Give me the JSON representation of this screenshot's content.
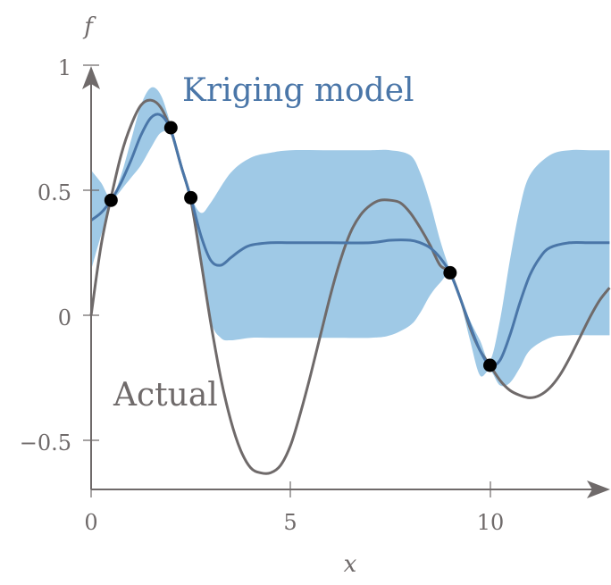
{
  "chart_data": {
    "type": "line",
    "title": "",
    "xlabel": "x",
    "ylabel": "f",
    "xlim": [
      0,
      13
    ],
    "ylim": [
      -0.7,
      1.0
    ],
    "grid": false,
    "legend": "inline annotations",
    "x_ticks": [
      "0",
      "5",
      "10"
    ],
    "y_ticks": [
      "−0.5",
      "0",
      "0.5",
      "1"
    ],
    "annotations": [
      {
        "text": "Kriging model",
        "color": "#4a76a8",
        "x": 4.6,
        "y": 0.9
      },
      {
        "text": "Actual",
        "color": "#6f6a6a",
        "x": 0.6,
        "y": -0.32
      }
    ],
    "colors": {
      "actual": "#6f6a6a",
      "model": "#4a76a8",
      "band": "#9fc9e6",
      "points": "#000000",
      "axes": "#6f6a6a"
    },
    "series": [
      {
        "name": "Actual",
        "x": [
          0,
          0.25,
          0.5,
          0.75,
          1.0,
          1.25,
          1.5,
          1.75,
          2.0,
          2.25,
          2.5,
          2.75,
          3.0,
          3.25,
          3.5,
          3.75,
          4.0,
          4.25,
          4.5,
          4.75,
          5.0,
          5.25,
          5.5,
          5.75,
          6.0,
          6.25,
          6.5,
          6.75,
          7.0,
          7.25,
          7.5,
          7.75,
          8.0,
          8.25,
          8.5,
          8.75,
          9.0,
          9.25,
          9.5,
          9.75,
          10.0,
          10.25,
          10.5,
          10.75,
          11.0,
          11.25,
          11.5,
          11.75,
          12.0,
          12.25,
          12.5,
          12.75,
          13.0
        ],
        "values": [
          0.0,
          0.28,
          0.47,
          0.64,
          0.76,
          0.84,
          0.86,
          0.83,
          0.74,
          0.6,
          0.46,
          0.22,
          -0.03,
          -0.25,
          -0.42,
          -0.54,
          -0.61,
          -0.63,
          -0.63,
          -0.6,
          -0.52,
          -0.39,
          -0.24,
          -0.08,
          0.08,
          0.22,
          0.33,
          0.4,
          0.44,
          0.46,
          0.46,
          0.45,
          0.41,
          0.35,
          0.28,
          0.2,
          0.17,
          0.07,
          -0.05,
          -0.14,
          -0.2,
          -0.26,
          -0.3,
          -0.32,
          -0.33,
          -0.32,
          -0.29,
          -0.24,
          -0.17,
          -0.09,
          -0.01,
          0.06,
          0.11
        ]
      },
      {
        "name": "Kriging model",
        "x": [
          0,
          0.25,
          0.5,
          0.75,
          1.0,
          1.25,
          1.5,
          1.75,
          2.0,
          2.25,
          2.5,
          2.75,
          3.0,
          3.25,
          3.5,
          3.75,
          4.0,
          4.5,
          5.0,
          6.0,
          7.0,
          7.5,
          8.0,
          8.25,
          8.5,
          8.75,
          9.0,
          9.25,
          9.5,
          9.75,
          10.0,
          10.25,
          10.5,
          10.75,
          11.0,
          11.25,
          11.5,
          12.0,
          12.5,
          13.0
        ],
        "values": [
          0.38,
          0.41,
          0.46,
          0.53,
          0.62,
          0.72,
          0.79,
          0.8,
          0.74,
          0.6,
          0.47,
          0.32,
          0.22,
          0.2,
          0.23,
          0.26,
          0.28,
          0.29,
          0.29,
          0.29,
          0.29,
          0.3,
          0.3,
          0.29,
          0.27,
          0.23,
          0.17,
          0.07,
          -0.04,
          -0.14,
          -0.2,
          -0.18,
          -0.08,
          0.05,
          0.16,
          0.23,
          0.27,
          0.29,
          0.29,
          0.29
        ]
      },
      {
        "name": "Confidence band (upper)",
        "x": [
          0,
          0.25,
          0.5,
          0.75,
          1.0,
          1.25,
          1.5,
          1.75,
          2.0,
          2.25,
          2.5,
          2.75,
          3.0,
          3.5,
          4.0,
          4.5,
          5.0,
          6.0,
          7.0,
          7.5,
          8.0,
          8.25,
          8.5,
          8.75,
          9.0,
          9.25,
          9.5,
          9.75,
          10.0,
          10.25,
          10.5,
          10.75,
          11.0,
          11.5,
          12.0,
          12.5,
          13.0
        ],
        "values": [
          0.58,
          0.53,
          0.47,
          0.56,
          0.7,
          0.84,
          0.91,
          0.88,
          0.76,
          0.62,
          0.48,
          0.41,
          0.45,
          0.57,
          0.63,
          0.65,
          0.66,
          0.66,
          0.66,
          0.66,
          0.64,
          0.57,
          0.45,
          0.3,
          0.18,
          0.08,
          -0.02,
          -0.1,
          -0.18,
          -0.02,
          0.22,
          0.43,
          0.56,
          0.64,
          0.66,
          0.66,
          0.66
        ]
      },
      {
        "name": "Confidence band (lower)",
        "x": [
          0,
          0.25,
          0.5,
          0.75,
          1.0,
          1.25,
          1.5,
          1.75,
          2.0,
          2.25,
          2.5,
          2.75,
          3.0,
          3.25,
          3.5,
          4.0,
          4.5,
          5.0,
          6.0,
          7.0,
          7.5,
          8.0,
          8.25,
          8.5,
          8.75,
          9.0,
          9.25,
          9.5,
          9.75,
          10.0,
          10.25,
          10.5,
          10.75,
          11.0,
          11.5,
          12.0,
          12.5,
          13.0
        ],
        "values": [
          0.18,
          0.32,
          0.44,
          0.5,
          0.55,
          0.6,
          0.67,
          0.73,
          0.72,
          0.58,
          0.45,
          0.22,
          -0.02,
          -0.09,
          -0.1,
          -0.09,
          -0.09,
          -0.09,
          -0.09,
          -0.09,
          -0.08,
          -0.04,
          0.01,
          0.08,
          0.13,
          0.16,
          0.06,
          -0.1,
          -0.24,
          -0.22,
          -0.28,
          -0.27,
          -0.21,
          -0.14,
          -0.09,
          -0.08,
          -0.08,
          -0.08
        ]
      },
      {
        "name": "Sample points",
        "x": [
          0.5,
          2.0,
          2.5,
          9.0,
          10.0
        ],
        "values": [
          0.46,
          0.75,
          0.47,
          0.17,
          -0.2
        ]
      }
    ]
  }
}
